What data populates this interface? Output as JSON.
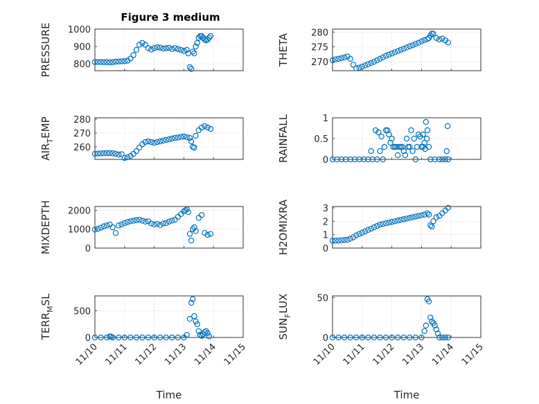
{
  "chart_data": {
    "title": "Figure 3 medium",
    "type": "scatter",
    "x_tick_labels": [
      "11/10",
      "11/11",
      "11/12",
      "11/13",
      "11/14",
      "11/15"
    ],
    "xlabel": "Time",
    "panels": [
      {
        "id": "pressure",
        "ylabel": "PRESSURE",
        "ylim": [
          760,
          1000
        ],
        "yticks": [
          800,
          900,
          1000
        ],
        "ytick_labels": [
          "800",
          "900",
          "1000"
        ],
        "x": [
          0,
          0.1,
          0.2,
          0.3,
          0.4,
          0.5,
          0.6,
          0.7,
          0.8,
          0.9,
          1.0,
          1.1,
          1.2,
          1.3,
          1.4,
          1.5,
          1.6,
          1.7,
          1.8,
          1.9,
          2.0,
          2.1,
          2.2,
          2.3,
          2.4,
          2.5,
          2.6,
          2.7,
          2.8,
          2.9,
          3.0,
          3.1,
          3.15,
          3.2,
          3.25,
          3.3,
          3.35,
          3.4,
          3.45,
          3.5,
          3.55,
          3.6,
          3.65,
          3.7,
          3.75,
          3.8,
          3.85,
          3.9
        ],
        "y": [
          810,
          810,
          810,
          809,
          809,
          808,
          809,
          812,
          813,
          814,
          815,
          818,
          830,
          850,
          880,
          910,
          920,
          910,
          890,
          882,
          890,
          895,
          893,
          888,
          890,
          892,
          885,
          890,
          885,
          880,
          875,
          880,
          860,
          780,
          770,
          870,
          860,
          900,
          920,
          950,
          960,
          960,
          950,
          940,
          935,
          940,
          950,
          960
        ]
      },
      {
        "id": "theta",
        "ylabel": "THETA",
        "ylim": [
          267,
          281
        ],
        "yticks": [
          270,
          275,
          280
        ],
        "ytick_labels": [
          "270",
          "275",
          "280"
        ],
        "x": [
          0,
          0.1,
          0.2,
          0.3,
          0.4,
          0.5,
          0.6,
          0.7,
          0.8,
          0.9,
          1.0,
          1.1,
          1.2,
          1.3,
          1.4,
          1.5,
          1.6,
          1.7,
          1.8,
          1.9,
          2.0,
          2.1,
          2.2,
          2.3,
          2.4,
          2.5,
          2.6,
          2.7,
          2.8,
          2.9,
          3.0,
          3.1,
          3.2,
          3.25,
          3.3,
          3.35,
          3.4,
          3.5,
          3.6,
          3.7,
          3.8,
          3.9
        ],
        "y": [
          270.5,
          270.8,
          271.0,
          271.2,
          271.5,
          271.8,
          271.0,
          269.0,
          267.8,
          268.0,
          268.4,
          268.8,
          269.2,
          269.6,
          270.0,
          270.5,
          271.0,
          271.5,
          272.0,
          272.4,
          272.8,
          273.2,
          273.6,
          274.0,
          274.4,
          274.8,
          275.2,
          275.6,
          276.0,
          276.4,
          276.9,
          277.3,
          277.6,
          278.0,
          278.8,
          279.5,
          279.4,
          278.0,
          277.5,
          277.8,
          277.2,
          276.5
        ]
      },
      {
        "id": "air_temp",
        "ylabel_main": "AIR",
        "ylabel_sub": "T",
        "ylabel_tail": "EMP",
        "ylim": [
          251,
          281
        ],
        "yticks": [
          260,
          270,
          280
        ],
        "ytick_labels": [
          "260",
          "270",
          "280"
        ],
        "x": [
          0,
          0.1,
          0.2,
          0.3,
          0.4,
          0.5,
          0.6,
          0.7,
          0.8,
          0.9,
          1.0,
          1.1,
          1.2,
          1.3,
          1.4,
          1.5,
          1.6,
          1.7,
          1.8,
          1.9,
          2.0,
          2.1,
          2.2,
          2.3,
          2.4,
          2.5,
          2.6,
          2.7,
          2.8,
          2.9,
          3.0,
          3.1,
          3.2,
          3.25,
          3.3,
          3.35,
          3.4,
          3.5,
          3.6,
          3.7,
          3.8,
          3.9
        ],
        "y": [
          255,
          255.2,
          255.3,
          255.4,
          255.5,
          255.5,
          255.4,
          255.0,
          254.5,
          254.8,
          252.0,
          252.5,
          253.5,
          255.0,
          257.0,
          259.5,
          262.0,
          263.5,
          264.0,
          263.5,
          263.0,
          263.5,
          264.0,
          264.5,
          265.0,
          265.5,
          266.0,
          266.5,
          266.8,
          267.2,
          267.5,
          267.0,
          266.5,
          264.0,
          260.0,
          259.5,
          268.0,
          272.0,
          274.0,
          275.0,
          274.0,
          273.0
        ]
      },
      {
        "id": "rainfall",
        "ylabel": "RAINFALL",
        "ylim": [
          0,
          1
        ],
        "yticks": [
          0,
          0.5,
          1
        ],
        "ytick_labels": [
          "0",
          "0.5",
          "1"
        ],
        "x": [
          0,
          0.15,
          0.3,
          0.45,
          0.6,
          0.75,
          0.9,
          1.05,
          1.2,
          1.35,
          1.5,
          1.6,
          1.7,
          1.8,
          1.9,
          2.0,
          2.1,
          2.2,
          2.3,
          2.4,
          2.5,
          2.6,
          2.7,
          2.8,
          2.9,
          3.0,
          3.05,
          3.1,
          3.15,
          3.2,
          3.3,
          3.45,
          3.6,
          3.7,
          3.8,
          3.9,
          1.3,
          1.45,
          1.55,
          1.65,
          1.75,
          1.85,
          1.95,
          2.05,
          2.15,
          2.25,
          2.35,
          2.45,
          2.55,
          2.65,
          2.75,
          2.85,
          2.95,
          3.05,
          3.12,
          3.18,
          3.25,
          3.85,
          3.88
        ],
        "y": [
          0,
          0,
          0,
          0,
          0,
          0,
          0,
          0,
          0,
          0,
          0,
          0.2,
          0,
          0.7,
          0.6,
          0.5,
          0.3,
          0.1,
          0.3,
          0.2,
          0.5,
          0.3,
          0.2,
          0,
          0.6,
          0.3,
          0.6,
          0.4,
          0.9,
          0.7,
          0,
          0,
          0,
          0,
          0,
          0,
          0.2,
          0.7,
          0.65,
          0.55,
          0.3,
          0.7,
          0.4,
          0.3,
          0.3,
          0.3,
          0.3,
          0.1,
          0.3,
          0.7,
          0.5,
          0.3,
          0.55,
          0.3,
          0.25,
          0.5,
          0.3,
          0.2,
          0.8
        ]
      },
      {
        "id": "mixdepth",
        "ylabel": "MIXDEPTH",
        "ylim": [
          0,
          2200
        ],
        "yticks": [
          0,
          1000,
          2000
        ],
        "ytick_labels": [
          "0",
          "1000",
          "2000"
        ],
        "x": [
          0,
          0.1,
          0.2,
          0.3,
          0.4,
          0.5,
          0.6,
          0.7,
          0.8,
          0.9,
          1.0,
          1.1,
          1.2,
          1.3,
          1.4,
          1.5,
          1.6,
          1.7,
          1.8,
          1.9,
          2.0,
          2.1,
          2.2,
          2.3,
          2.4,
          2.5,
          2.6,
          2.7,
          2.8,
          2.9,
          3.0,
          3.05,
          3.1,
          3.15,
          3.2,
          3.25,
          3.3,
          3.35,
          3.4,
          3.5,
          3.6,
          3.7,
          3.8,
          3.9
        ],
        "y": [
          980,
          1020,
          1080,
          1150,
          1200,
          1250,
          1100,
          800,
          1200,
          1250,
          1320,
          1380,
          1420,
          1450,
          1480,
          1500,
          1450,
          1400,
          1420,
          1300,
          1250,
          1280,
          1220,
          1300,
          1320,
          1400,
          1450,
          1500,
          1650,
          1800,
          1950,
          2000,
          2050,
          1900,
          750,
          400,
          1000,
          1100,
          900,
          1600,
          1750,
          800,
          700,
          750
        ]
      },
      {
        "id": "h2omixra",
        "ylabel": "H2OMIXRA",
        "ylim": [
          0,
          3.1
        ],
        "yticks": [
          0,
          1,
          2,
          3
        ],
        "ytick_labels": [
          "0",
          "1",
          "2",
          "3"
        ],
        "x": [
          0,
          0.1,
          0.2,
          0.3,
          0.4,
          0.5,
          0.6,
          0.7,
          0.8,
          0.9,
          1.0,
          1.1,
          1.2,
          1.3,
          1.4,
          1.5,
          1.6,
          1.7,
          1.8,
          1.9,
          2.0,
          2.1,
          2.2,
          2.3,
          2.4,
          2.5,
          2.6,
          2.7,
          2.8,
          2.9,
          3.0,
          3.1,
          3.2,
          3.25,
          3.3,
          3.35,
          3.4,
          3.5,
          3.6,
          3.7,
          3.8,
          3.9
        ],
        "y": [
          0.55,
          0.55,
          0.56,
          0.58,
          0.6,
          0.62,
          0.7,
          0.8,
          0.95,
          1.05,
          1.15,
          1.25,
          1.35,
          1.45,
          1.55,
          1.65,
          1.75,
          1.8,
          1.85,
          1.9,
          1.95,
          2.0,
          2.05,
          2.1,
          2.15,
          2.2,
          2.25,
          2.3,
          2.35,
          2.4,
          2.45,
          2.5,
          2.6,
          2.5,
          1.7,
          1.6,
          2.0,
          2.3,
          2.4,
          2.6,
          2.8,
          3.0
        ]
      },
      {
        "id": "terr_msl",
        "ylabel_main": "TERR",
        "ylabel_sub": "M",
        "ylabel_tail": "SL",
        "ylim": [
          0,
          780
        ],
        "yticks": [
          0,
          500
        ],
        "ytick_labels": [
          "0",
          "500"
        ],
        "x": [
          0,
          0.2,
          0.4,
          0.6,
          0.8,
          1.0,
          1.2,
          1.4,
          1.6,
          1.8,
          2.0,
          2.2,
          2.4,
          2.6,
          2.8,
          3.0,
          3.1,
          3.2,
          3.25,
          3.3,
          3.35,
          3.4,
          3.45,
          3.5,
          3.55,
          3.6,
          3.65,
          3.7,
          3.75,
          3.8,
          3.85,
          0.5,
          0.55
        ],
        "y": [
          0,
          0,
          0,
          0,
          0,
          0,
          0,
          0,
          0,
          0,
          0,
          0,
          0,
          0,
          0,
          0,
          50,
          350,
          650,
          720,
          400,
          300,
          250,
          120,
          50,
          30,
          60,
          100,
          120,
          80,
          20,
          20,
          15
        ]
      },
      {
        "id": "sun_flux",
        "ylabel_main": "SUN",
        "ylabel_sub": "F",
        "ylabel_tail": "LUX",
        "ylim": [
          0,
          52
        ],
        "yticks": [
          0,
          50
        ],
        "ytick_labels": [
          "0",
          "50"
        ],
        "x": [
          0,
          0.2,
          0.4,
          0.6,
          0.8,
          1.0,
          1.2,
          1.4,
          1.6,
          1.8,
          2.0,
          2.2,
          2.4,
          2.6,
          2.8,
          3.0,
          3.1,
          3.15,
          3.2,
          3.25,
          3.3,
          3.35,
          3.4,
          3.45,
          3.5,
          3.55,
          3.6,
          3.7,
          3.8,
          3.9
        ],
        "y": [
          0,
          0,
          0,
          0,
          0,
          0,
          0,
          0,
          0,
          0,
          0,
          0,
          0,
          0,
          0,
          0,
          8,
          15,
          48,
          45,
          25,
          20,
          18,
          15,
          10,
          5,
          0,
          0,
          0,
          0
        ]
      }
    ]
  }
}
